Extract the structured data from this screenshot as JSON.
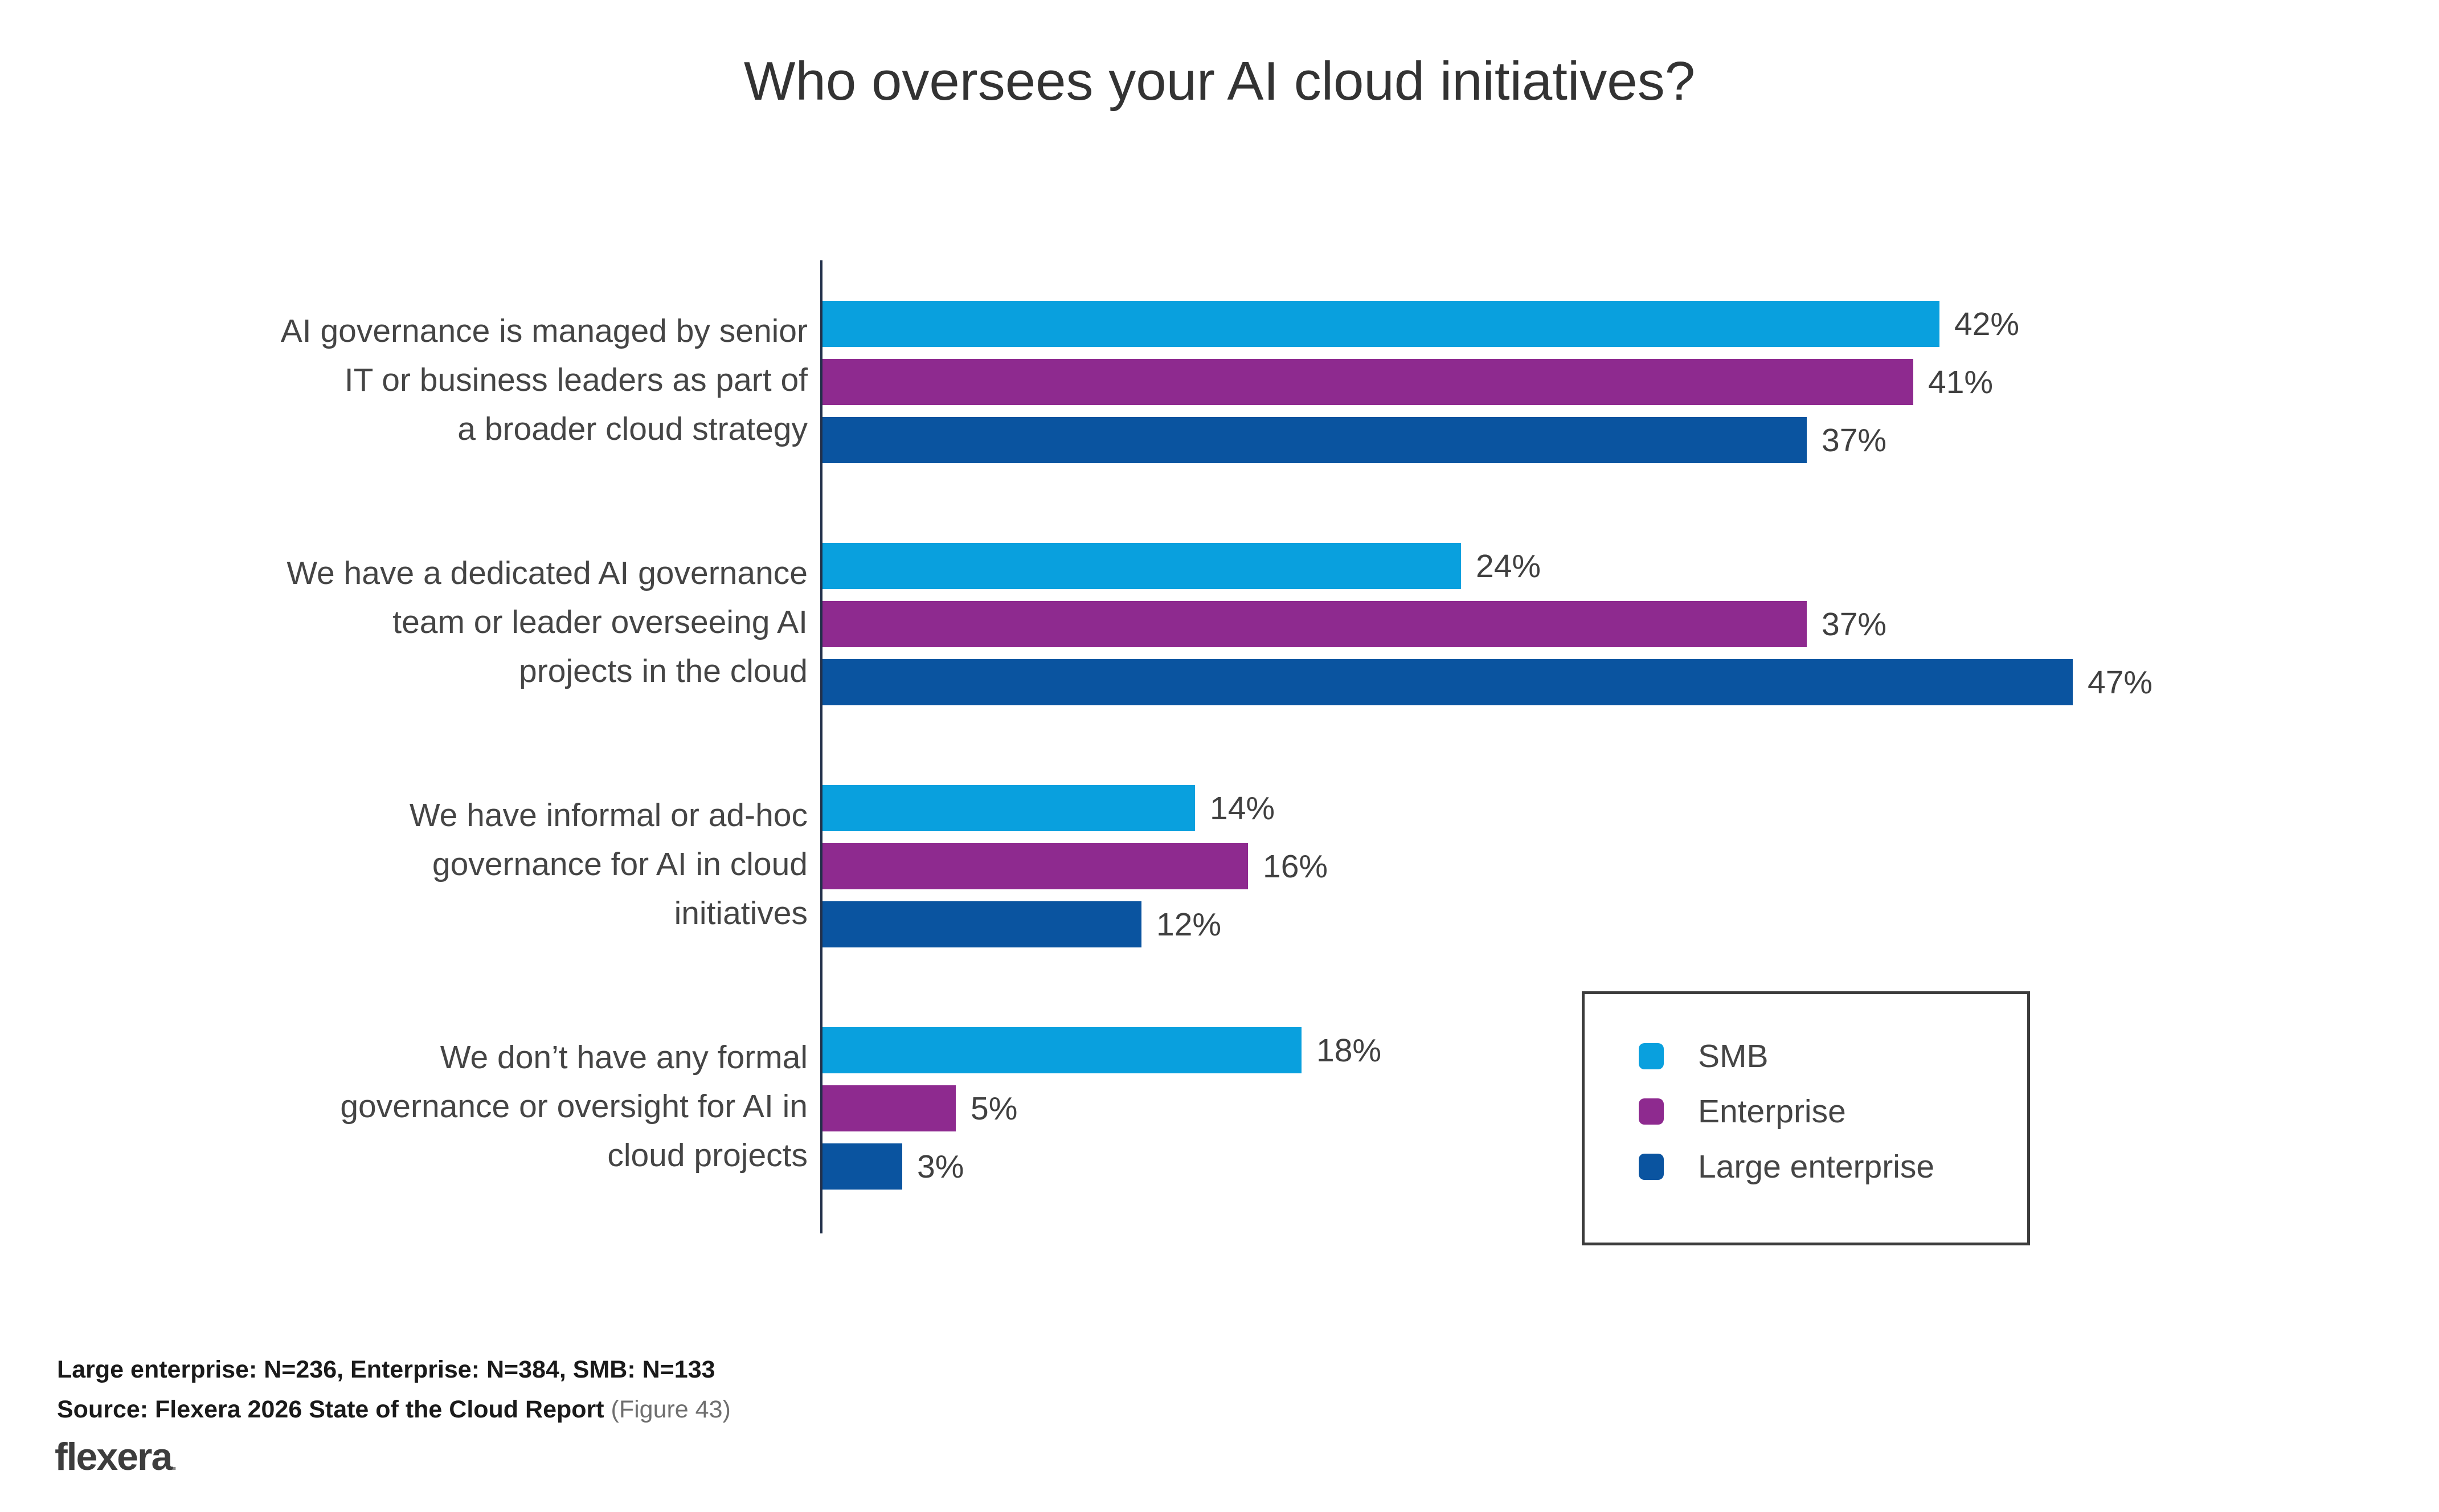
{
  "colors": {
    "smb": "#09A0DE",
    "enterprise": "#8E2A8F",
    "large_enterprise": "#0A54A0",
    "title_text": "#333333",
    "label_text": "#454545",
    "value_text": "#404040",
    "axis": "#22304A",
    "legend_border": "#3C3C3C",
    "footer_text": "#1A1A1A",
    "figure_note": "#6F6F6F",
    "logo": "#3D3D3D",
    "background": "#FFFFFF"
  },
  "chart_data": {
    "type": "bar",
    "orientation": "horizontal",
    "title": "Who oversees your AI cloud initiatives?",
    "categories": [
      "AI governance is managed by senior\nIT or business leaders as part of\na broader cloud strategy",
      "We have a dedicated AI governance\nteam or leader overseeing AI\nprojects in the cloud",
      "We have informal or ad-hoc\ngovernance for AI in cloud\ninitiatives",
      "We don’t have any formal\ngovernance or oversight for AI in\ncloud projects"
    ],
    "series": [
      {
        "name": "SMB",
        "values": [
          42,
          24,
          14,
          18
        ]
      },
      {
        "name": "Enterprise",
        "values": [
          41,
          37,
          16,
          5
        ]
      },
      {
        "name": "Large enterprise",
        "values": [
          37,
          47,
          12,
          3
        ]
      }
    ],
    "value_suffix": "%",
    "xlim": [
      0,
      50
    ],
    "grid": "off",
    "x_axis_labels": "none",
    "legend_position": "bottom-right"
  },
  "footer": {
    "sample_note": "Large enterprise: N=236, Enterprise: N=384, SMB: N=133",
    "source_main": "Source: Flexera 2026 State of the Cloud Report",
    "source_figure": " (Figure 43)",
    "logo_text": "flexera",
    "logo_mark": "."
  }
}
